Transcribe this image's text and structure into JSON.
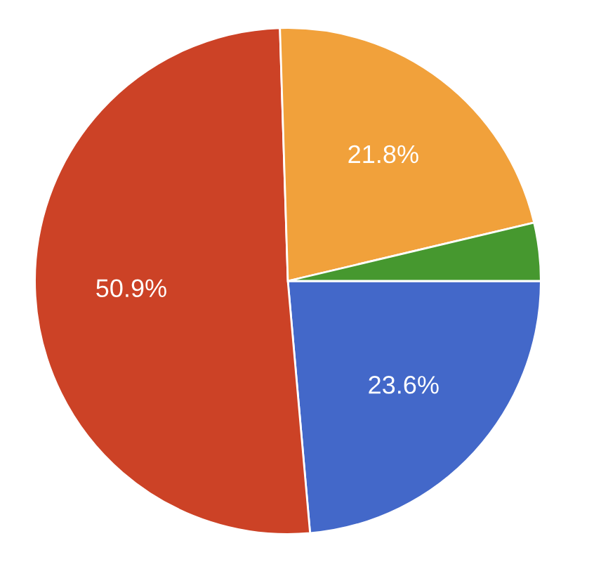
{
  "chart_data": {
    "type": "pie",
    "categories": [
      null,
      null,
      null,
      null
    ],
    "values": [
      23.6,
      50.9,
      21.8,
      3.7
    ],
    "colors": [
      "#4368c9",
      "#cc4226",
      "#f1a13b",
      "#46982f"
    ],
    "value_labels": [
      "23.6%",
      "50.9%",
      "21.8%",
      null
    ]
  }
}
